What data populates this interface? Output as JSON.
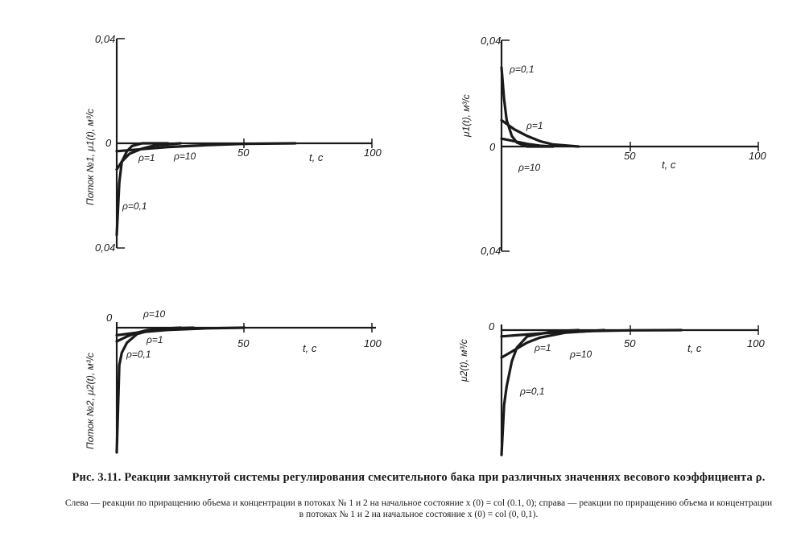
{
  "figure": {
    "caption_main": "Рис. 3.11. Реакции замкнутой системы регулирования смесительного бака при различных значениях весового коэффициента ρ.",
    "caption_sub": "Слева — реакции по приращению объема и концентрации в потоках № 1 и 2 на начальное состояние x (0) = col (0.1, 0); справа — реакции по приращению объема и концентрации в потоках № 1 и 2 на начальное состояние x (0) = col (0, 0,1)."
  },
  "chart_data": [
    {
      "type": "line",
      "id": "left-top",
      "ylabel": "Поток №1,  μ1(t), м³/с",
      "xlabel": "t, c",
      "xlim": [
        0,
        100
      ],
      "ylim": [
        -0.04,
        0.04
      ],
      "xticks": [
        "50",
        "100"
      ],
      "yticks": [
        "0,04",
        "0",
        "0,04"
      ],
      "series": [
        {
          "name": "ρ=0,1",
          "x": [
            0,
            1,
            2,
            4,
            6,
            10,
            20
          ],
          "y": [
            -0.035,
            -0.015,
            -0.007,
            -0.003,
            -0.001,
            0,
            0
          ]
        },
        {
          "name": "ρ=1",
          "x": [
            0,
            2,
            5,
            10,
            15,
            25
          ],
          "y": [
            -0.01,
            -0.007,
            -0.004,
            -0.002,
            -0.0008,
            0
          ]
        },
        {
          "name": "ρ=10",
          "x": [
            0,
            10,
            20,
            35,
            50,
            70
          ],
          "y": [
            -0.003,
            -0.0022,
            -0.0014,
            -0.0007,
            -0.0002,
            0
          ]
        }
      ],
      "labels": {
        "r01": "ρ=0,1",
        "r1": "ρ=1",
        "r10": "ρ=10"
      }
    },
    {
      "type": "line",
      "id": "right-top",
      "ylabel": "μ1(t), м³/с",
      "xlabel": "t, c",
      "xlim": [
        0,
        100
      ],
      "ylim": [
        -0.04,
        0.04
      ],
      "xticks": [
        "50",
        "100"
      ],
      "yticks": [
        "0,04",
        "0",
        "0,04"
      ],
      "series": [
        {
          "name": "ρ=0,1",
          "x": [
            0,
            1,
            2,
            4,
            6,
            10,
            20
          ],
          "y": [
            0.03,
            0.018,
            0.01,
            0.004,
            0.0015,
            0,
            0
          ]
        },
        {
          "name": "ρ=1",
          "x": [
            0,
            5,
            10,
            15,
            20,
            30
          ],
          "y": [
            0.01,
            0.0065,
            0.004,
            0.002,
            0.0008,
            0
          ]
        },
        {
          "name": "ρ=10",
          "x": [
            0,
            5,
            10,
            15,
            20
          ],
          "y": [
            0.003,
            0.002,
            0.001,
            0.0003,
            0
          ]
        }
      ],
      "labels": {
        "r01": "ρ=0,1",
        "r1": "ρ=1",
        "r10": "ρ=10"
      }
    },
    {
      "type": "line",
      "id": "left-bottom",
      "ylabel": "Поток №2, μ2(t), м³/с",
      "xlabel": "t, c",
      "xlim": [
        0,
        100
      ],
      "xticks": [
        "0",
        "50",
        "100"
      ],
      "series": [
        {
          "name": "ρ=0,1",
          "x": [
            0,
            1,
            2,
            4,
            8,
            15,
            25
          ],
          "y": [
            -1.0,
            -0.3,
            -0.2,
            -0.12,
            -0.05,
            -0.01,
            0
          ]
        },
        {
          "name": "ρ=1",
          "x": [
            0,
            4,
            8,
            12,
            20,
            30
          ],
          "y": [
            -0.11,
            -0.07,
            -0.04,
            -0.02,
            -0.005,
            0
          ]
        },
        {
          "name": "ρ=10",
          "x": [
            0,
            10,
            20,
            35,
            50
          ],
          "y": [
            -0.06,
            -0.035,
            -0.018,
            -0.005,
            0
          ]
        }
      ],
      "labels": {
        "r01": "ρ=0,1",
        "r1": "ρ=1",
        "r10": "ρ=10"
      }
    },
    {
      "type": "line",
      "id": "right-bottom",
      "ylabel": "μ2(t), м³/с",
      "xlabel": "t, c",
      "xlim": [
        0,
        100
      ],
      "xticks": [
        "0",
        "50",
        "100"
      ],
      "series": [
        {
          "name": "ρ=0,1",
          "x": [
            0,
            1,
            2,
            4,
            6,
            10,
            20,
            30
          ],
          "y": [
            -1.0,
            -0.6,
            -0.45,
            -0.25,
            -0.14,
            -0.05,
            -0.01,
            0
          ]
        },
        {
          "name": "ρ=1",
          "x": [
            0,
            5,
            10,
            15,
            25,
            40
          ],
          "y": [
            -0.22,
            -0.16,
            -0.1,
            -0.06,
            -0.02,
            0
          ]
        },
        {
          "name": "ρ=10",
          "x": [
            0,
            10,
            20,
            35,
            50,
            70
          ],
          "y": [
            -0.05,
            -0.035,
            -0.02,
            -0.008,
            -0.002,
            0
          ]
        }
      ],
      "labels": {
        "r01": "ρ=0,1",
        "r1": "ρ=1",
        "r10": "ρ=10"
      }
    }
  ]
}
